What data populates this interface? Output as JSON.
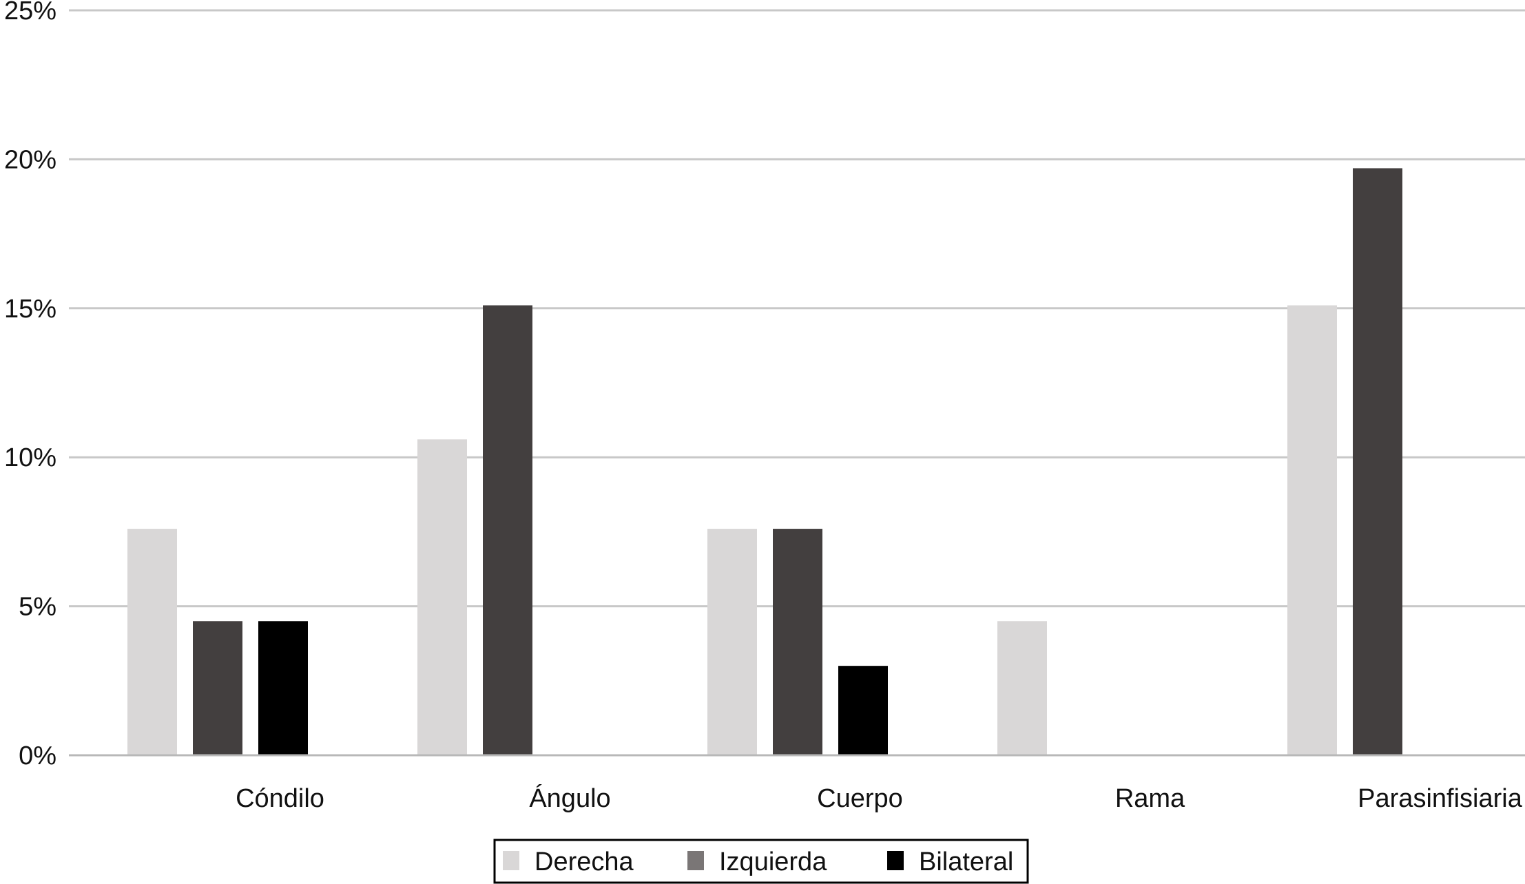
{
  "chart_data": {
    "type": "bar",
    "title": "",
    "xlabel": "",
    "ylabel": "",
    "categories": [
      "Cóndilo",
      "Ángulo",
      "Cuerpo",
      "Rama",
      "Parasinfisiaria"
    ],
    "series": [
      {
        "name": "Derecha",
        "color": "#d9d7d7",
        "values": [
          7.6,
          10.6,
          7.6,
          4.5,
          15.1
        ]
      },
      {
        "name": "Izquierda",
        "color": "#433f3f",
        "values": [
          4.5,
          15.1,
          7.6,
          0,
          19.7
        ]
      },
      {
        "name": "Bilateral",
        "color": "#000000",
        "values": [
          4.5,
          0,
          3.0,
          0,
          0
        ]
      }
    ],
    "ylim": [
      0,
      25
    ],
    "yticks": [
      0,
      5,
      10,
      15,
      20,
      25
    ],
    "ytick_labels": [
      "0%",
      "5%",
      "10%",
      "15%",
      "20%",
      "25%"
    ],
    "grid": true,
    "legend_position": "bottom-center"
  }
}
